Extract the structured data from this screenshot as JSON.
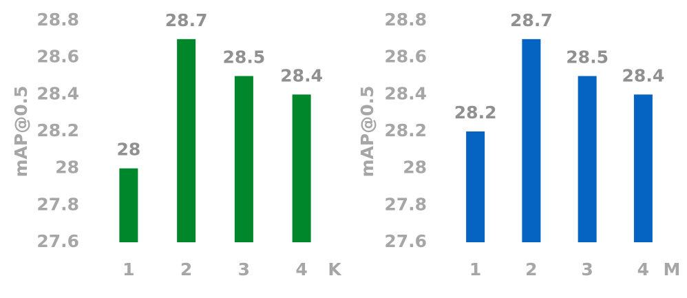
{
  "chart_data": [
    {
      "type": "bar",
      "y_label": "mAP@0.5",
      "x_label": "K",
      "categories": [
        "1",
        "2",
        "3",
        "4"
      ],
      "values": [
        28,
        28.7,
        28.5,
        28.4
      ],
      "color": "#00862b",
      "ylim": [
        27.6,
        28.8
      ],
      "yticks": [
        27.6,
        27.8,
        28,
        28.2,
        28.4,
        28.6,
        28.8
      ]
    },
    {
      "type": "bar",
      "y_label": "mAP@0.5",
      "x_label": "M",
      "categories": [
        "1",
        "2",
        "3",
        "4"
      ],
      "values": [
        28.2,
        28.7,
        28.5,
        28.4
      ],
      "color": "#0563c1",
      "ylim": [
        27.6,
        28.8
      ],
      "yticks": [
        27.6,
        27.8,
        28,
        28.2,
        28.4,
        28.6,
        28.8
      ]
    }
  ]
}
